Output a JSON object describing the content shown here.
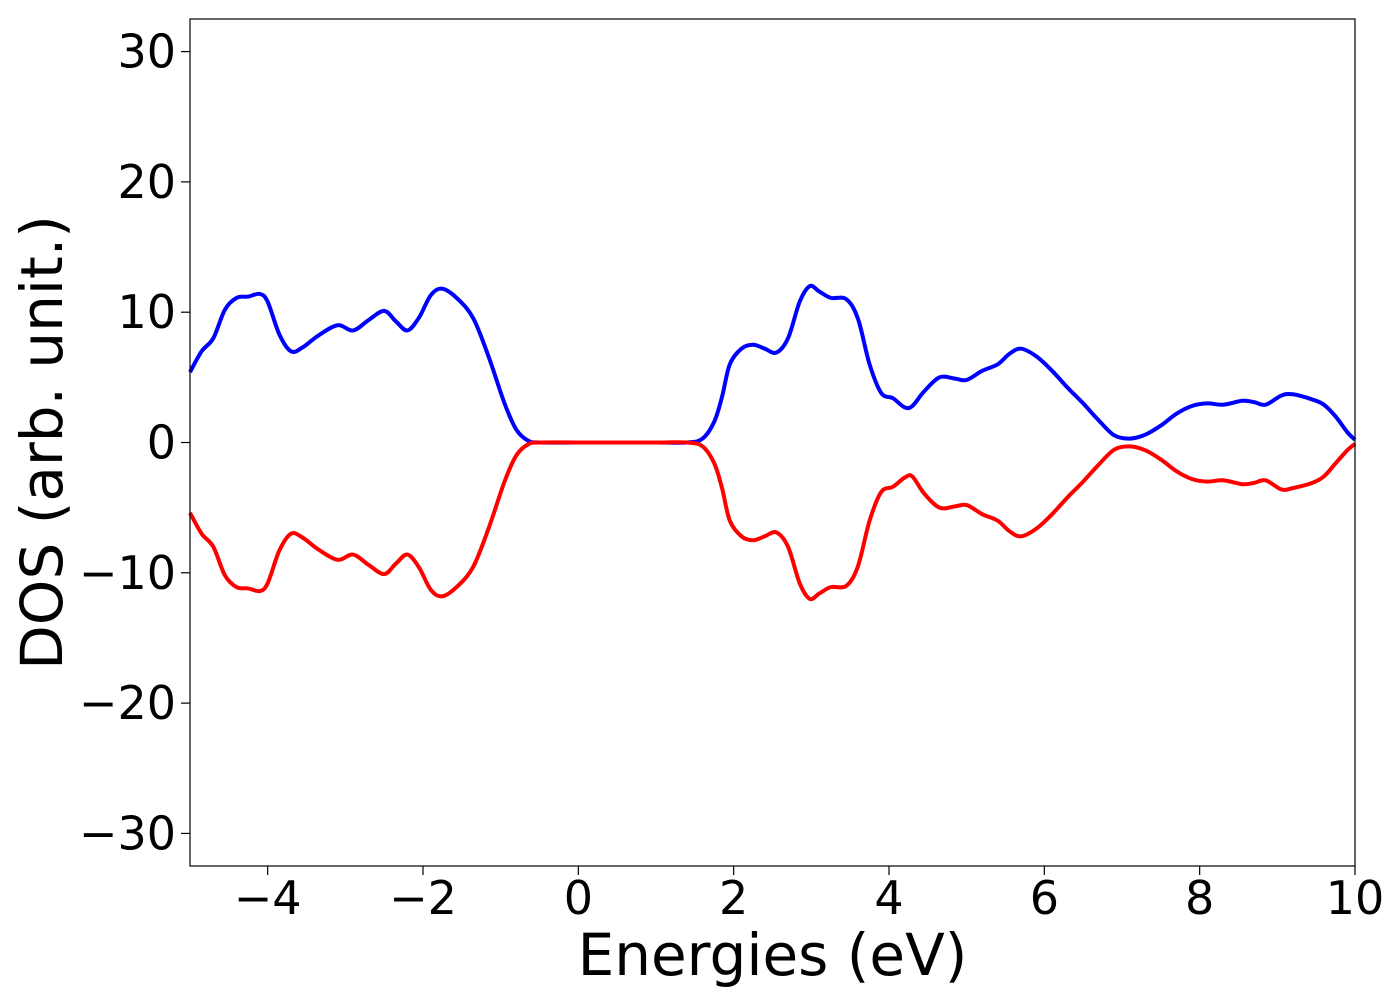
{
  "chart_data": {
    "type": "line",
    "title": "",
    "xlabel": "Energies (eV)",
    "ylabel": "DOS (arb. unit.)",
    "xlim": [
      -5,
      10
    ],
    "ylim": [
      -32.5,
      32.5
    ],
    "xticks": [
      -4,
      -2,
      0,
      2,
      4,
      6,
      8,
      10
    ],
    "xtick_labels": [
      "−4",
      "−2",
      "0",
      "2",
      "4",
      "6",
      "8",
      "10"
    ],
    "yticks": [
      -30,
      -20,
      -10,
      0,
      10,
      20,
      30
    ],
    "ytick_labels": [
      "−30",
      "−20",
      "−10",
      "0",
      "10",
      "20",
      "30"
    ],
    "grid": false,
    "legend": "none",
    "series": [
      {
        "color": "#0000ff",
        "points": [
          [
            -5.0,
            5.4
          ],
          [
            -4.85,
            7.0
          ],
          [
            -4.7,
            8.0
          ],
          [
            -4.55,
            10.2
          ],
          [
            -4.4,
            11.1
          ],
          [
            -4.25,
            11.2
          ],
          [
            -4.1,
            11.4
          ],
          [
            -4.0,
            10.8
          ],
          [
            -3.85,
            8.3
          ],
          [
            -3.7,
            7.0
          ],
          [
            -3.55,
            7.3
          ],
          [
            -3.35,
            8.2
          ],
          [
            -3.1,
            9.0
          ],
          [
            -2.9,
            8.6
          ],
          [
            -2.7,
            9.4
          ],
          [
            -2.5,
            10.1
          ],
          [
            -2.35,
            9.3
          ],
          [
            -2.2,
            8.6
          ],
          [
            -2.05,
            9.6
          ],
          [
            -1.9,
            11.3
          ],
          [
            -1.75,
            11.8
          ],
          [
            -1.55,
            11.0
          ],
          [
            -1.35,
            9.5
          ],
          [
            -1.15,
            6.5
          ],
          [
            -0.95,
            3.0
          ],
          [
            -0.8,
            1.0
          ],
          [
            -0.65,
            0.15
          ],
          [
            -0.5,
            0.0
          ],
          [
            0.0,
            0.0
          ],
          [
            0.5,
            0.0
          ],
          [
            1.0,
            0.0
          ],
          [
            1.4,
            0.0
          ],
          [
            1.6,
            0.3
          ],
          [
            1.75,
            1.6
          ],
          [
            1.85,
            3.5
          ],
          [
            1.95,
            6.0
          ],
          [
            2.1,
            7.2
          ],
          [
            2.25,
            7.5
          ],
          [
            2.4,
            7.2
          ],
          [
            2.55,
            6.9
          ],
          [
            2.7,
            8.0
          ],
          [
            2.85,
            10.8
          ],
          [
            2.98,
            12.0
          ],
          [
            3.1,
            11.6
          ],
          [
            3.25,
            11.1
          ],
          [
            3.45,
            11.0
          ],
          [
            3.6,
            9.5
          ],
          [
            3.75,
            6.0
          ],
          [
            3.9,
            3.8
          ],
          [
            4.05,
            3.4
          ],
          [
            4.2,
            2.7
          ],
          [
            4.3,
            2.8
          ],
          [
            4.45,
            3.9
          ],
          [
            4.65,
            5.0
          ],
          [
            4.85,
            4.9
          ],
          [
            5.0,
            4.8
          ],
          [
            5.2,
            5.5
          ],
          [
            5.4,
            6.0
          ],
          [
            5.55,
            6.8
          ],
          [
            5.7,
            7.2
          ],
          [
            5.9,
            6.6
          ],
          [
            6.1,
            5.5
          ],
          [
            6.3,
            4.2
          ],
          [
            6.5,
            3.0
          ],
          [
            6.7,
            1.7
          ],
          [
            6.9,
            0.55
          ],
          [
            7.1,
            0.3
          ],
          [
            7.3,
            0.6
          ],
          [
            7.5,
            1.3
          ],
          [
            7.7,
            2.2
          ],
          [
            7.9,
            2.8
          ],
          [
            8.1,
            3.0
          ],
          [
            8.3,
            2.9
          ],
          [
            8.55,
            3.2
          ],
          [
            8.7,
            3.1
          ],
          [
            8.85,
            2.9
          ],
          [
            9.05,
            3.6
          ],
          [
            9.2,
            3.7
          ],
          [
            9.45,
            3.3
          ],
          [
            9.6,
            2.9
          ],
          [
            9.75,
            2.0
          ],
          [
            9.9,
            0.8
          ],
          [
            10.0,
            0.2
          ]
        ]
      },
      {
        "color": "#ff0000",
        "points": [
          [
            -5.0,
            -5.4
          ],
          [
            -4.85,
            -7.0
          ],
          [
            -4.7,
            -8.0
          ],
          [
            -4.55,
            -10.2
          ],
          [
            -4.4,
            -11.1
          ],
          [
            -4.25,
            -11.2
          ],
          [
            -4.1,
            -11.4
          ],
          [
            -4.0,
            -10.8
          ],
          [
            -3.85,
            -8.3
          ],
          [
            -3.7,
            -7.0
          ],
          [
            -3.55,
            -7.3
          ],
          [
            -3.35,
            -8.2
          ],
          [
            -3.1,
            -9.0
          ],
          [
            -2.9,
            -8.6
          ],
          [
            -2.7,
            -9.4
          ],
          [
            -2.5,
            -10.1
          ],
          [
            -2.35,
            -9.3
          ],
          [
            -2.2,
            -8.6
          ],
          [
            -2.05,
            -9.6
          ],
          [
            -1.9,
            -11.3
          ],
          [
            -1.75,
            -11.8
          ],
          [
            -1.55,
            -11.0
          ],
          [
            -1.35,
            -9.5
          ],
          [
            -1.15,
            -6.5
          ],
          [
            -0.95,
            -3.0
          ],
          [
            -0.8,
            -1.0
          ],
          [
            -0.65,
            -0.15
          ],
          [
            -0.5,
            0.0
          ],
          [
            0.0,
            0.0
          ],
          [
            0.5,
            0.0
          ],
          [
            1.0,
            0.0
          ],
          [
            1.4,
            0.0
          ],
          [
            1.6,
            -0.3
          ],
          [
            1.75,
            -1.6
          ],
          [
            1.85,
            -3.5
          ],
          [
            1.95,
            -6.0
          ],
          [
            2.1,
            -7.2
          ],
          [
            2.25,
            -7.5
          ],
          [
            2.4,
            -7.2
          ],
          [
            2.55,
            -6.9
          ],
          [
            2.7,
            -8.0
          ],
          [
            2.85,
            -10.8
          ],
          [
            2.98,
            -12.0
          ],
          [
            3.1,
            -11.6
          ],
          [
            3.25,
            -11.1
          ],
          [
            3.45,
            -11.0
          ],
          [
            3.6,
            -9.5
          ],
          [
            3.75,
            -6.0
          ],
          [
            3.9,
            -3.8
          ],
          [
            4.05,
            -3.4
          ],
          [
            4.2,
            -2.7
          ],
          [
            4.3,
            -2.6
          ],
          [
            4.45,
            -3.9
          ],
          [
            4.65,
            -5.0
          ],
          [
            4.85,
            -4.9
          ],
          [
            5.0,
            -4.8
          ],
          [
            5.2,
            -5.5
          ],
          [
            5.4,
            -6.0
          ],
          [
            5.55,
            -6.8
          ],
          [
            5.7,
            -7.2
          ],
          [
            5.9,
            -6.6
          ],
          [
            6.1,
            -5.5
          ],
          [
            6.3,
            -4.2
          ],
          [
            6.5,
            -3.0
          ],
          [
            6.7,
            -1.7
          ],
          [
            6.9,
            -0.55
          ],
          [
            7.1,
            -0.3
          ],
          [
            7.3,
            -0.6
          ],
          [
            7.5,
            -1.3
          ],
          [
            7.7,
            -2.2
          ],
          [
            7.9,
            -2.8
          ],
          [
            8.1,
            -3.0
          ],
          [
            8.3,
            -2.9
          ],
          [
            8.55,
            -3.2
          ],
          [
            8.7,
            -3.1
          ],
          [
            8.85,
            -2.9
          ],
          [
            9.05,
            -3.6
          ],
          [
            9.2,
            -3.5
          ],
          [
            9.45,
            -3.1
          ],
          [
            9.6,
            -2.6
          ],
          [
            9.75,
            -1.6
          ],
          [
            9.9,
            -0.6
          ],
          [
            10.0,
            -0.1
          ]
        ]
      }
    ]
  }
}
